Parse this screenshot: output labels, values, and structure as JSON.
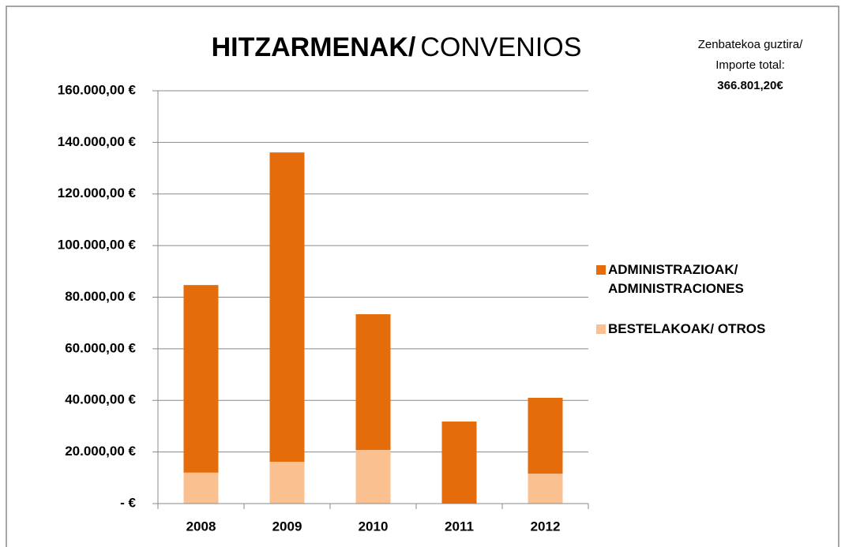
{
  "chart_data": {
    "type": "stacked_bar",
    "title": [
      "HITZARMENAK/",
      "CONVENIOS"
    ],
    "annotation": [
      "Zenbatekoa guztira/",
      "Importe total:",
      "366.801,20€"
    ],
    "categories": [
      "2008",
      "2009",
      "2010",
      "2011",
      "2012"
    ],
    "series": [
      {
        "name": "ADMINISTRAZIOAK/ ADMINISTRACIONES",
        "color": "#e46c0a",
        "values": [
          72700,
          119900,
          52600,
          31800,
          29400
        ]
      },
      {
        "name": "BESTELAKOAK/ OTROS",
        "color": "#fac090",
        "values": [
          12000,
          16200,
          20800,
          0,
          11600
        ]
      }
    ],
    "ylim": [
      0,
      160000
    ],
    "yticks": [
      {
        "value": 0,
        "label": "-   €"
      },
      {
        "value": 20000,
        "label": "20.000,00 €"
      },
      {
        "value": 40000,
        "label": "40.000,00 €"
      },
      {
        "value": 60000,
        "label": "60.000,00 €"
      },
      {
        "value": 80000,
        "label": "80.000,00 €"
      },
      {
        "value": 100000,
        "label": "100.000,00 €"
      },
      {
        "value": 120000,
        "label": "120.000,00 €"
      },
      {
        "value": 140000,
        "label": "140.000,00 €"
      },
      {
        "value": 160000,
        "label": "160.000,00 €"
      }
    ],
    "grid": true,
    "legend": "right"
  }
}
